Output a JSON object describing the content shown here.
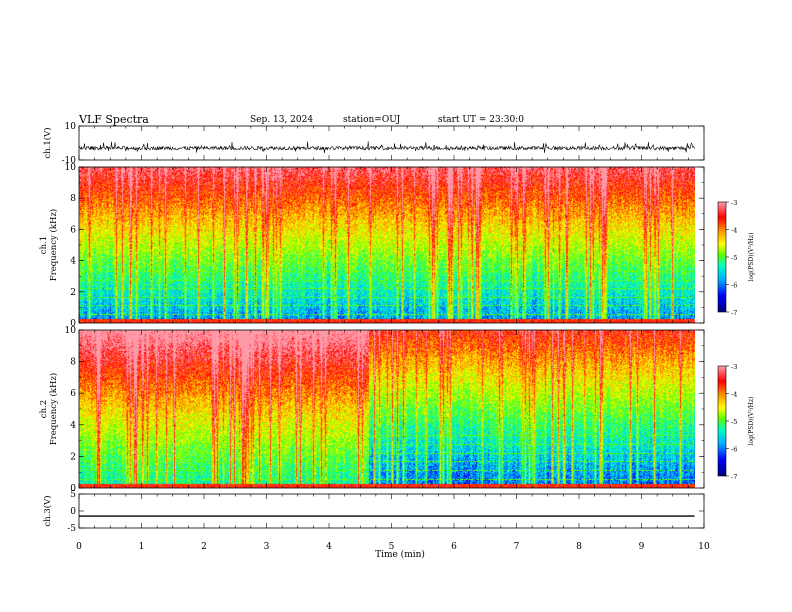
{
  "header": {
    "title": "VLF Spectra",
    "date": "Sep. 13, 2024",
    "station": "station=OUJ",
    "start": "start UT =  23:30:0"
  },
  "chart_data": [
    {
      "type": "line",
      "ylabel": "ch.1(V)",
      "ylim": [
        -10,
        10
      ],
      "yticks": [
        "10",
        "-10"
      ],
      "description_values": {
        "baseline": -3,
        "noise_range": [
          -6,
          1
        ]
      }
    },
    {
      "type": "heatmap",
      "ylabel": "ch.1\nFrequency (kHz)",
      "xlim": [
        0,
        10
      ],
      "ylim": [
        0,
        10
      ],
      "yticks": [
        "0",
        "2",
        "4",
        "6",
        "8",
        "10"
      ],
      "colorbar": {
        "label": "log(PSD)(V²/Hz)",
        "range": [
          -7,
          -3
        ],
        "ticks": [
          "-3",
          "-4",
          "-5",
          "-6",
          "-7"
        ]
      }
    },
    {
      "type": "heatmap",
      "ylabel": "ch.2\nFrequency (kHz)",
      "xlim": [
        0,
        10
      ],
      "ylim": [
        0,
        10
      ],
      "yticks": [
        "0",
        "2",
        "4",
        "6",
        "8",
        "10"
      ],
      "colorbar": {
        "label": "log(PSD)(V²/Hz)",
        "range": [
          -7,
          -3
        ],
        "ticks": [
          "-3",
          "-4",
          "-5",
          "-6",
          "-7"
        ]
      }
    },
    {
      "type": "line",
      "ylabel": "ch.3(V)",
      "ylim": [
        -5,
        5
      ],
      "yticks": [
        "5",
        "0",
        "-5"
      ],
      "x": [
        0,
        9.85
      ],
      "y": [
        -1.5,
        -1.5
      ]
    }
  ],
  "xaxis": {
    "label": "Time (min)",
    "ticks": [
      "0",
      "1",
      "2",
      "3",
      "4",
      "5",
      "6",
      "7",
      "8",
      "9",
      "10"
    ],
    "data_end": 9.85
  },
  "colors": {
    "colormap": [
      "#00007a",
      "#0000ff",
      "#00b4ff",
      "#00ffc0",
      "#60ff00",
      "#ffff00",
      "#ff9000",
      "#ff0000",
      "#ff9aa8"
    ]
  }
}
